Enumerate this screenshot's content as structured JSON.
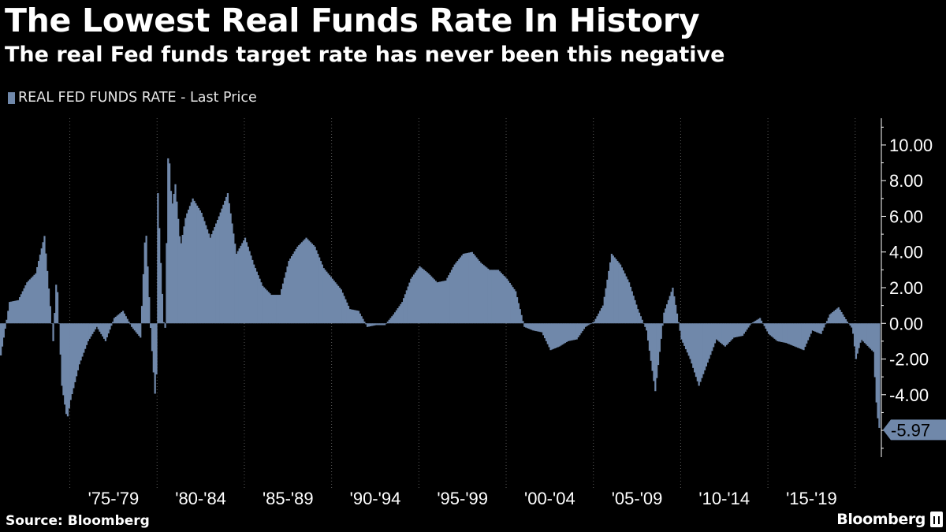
{
  "title": "The Lowest Real Funds Rate In History",
  "subtitle": "The real Fed funds target rate has never been this negative",
  "legend": {
    "label": "REAL FED FUNDS RATE - Last Price"
  },
  "last_value_label": "-5.97",
  "source": "Source: Bloomberg",
  "brand": "Bloomberg",
  "colors": {
    "background": "#000000",
    "bar": "#7088AA",
    "text": "#FFFFFF",
    "grid": "#5a5a5a"
  },
  "chart_data": {
    "type": "bar",
    "title": "The Lowest Real Funds Rate In History",
    "subtitle": "The real Fed funds target rate has never been this negative",
    "series": [
      {
        "name": "REAL FED FUNDS RATE - Last Price",
        "x": [
          1971.0,
          1971.5,
          1972.0,
          1972.5,
          1973.0,
          1973.5,
          1974.0,
          1974.2,
          1974.5,
          1974.8,
          1975.0,
          1975.5,
          1976.0,
          1976.5,
          1977.0,
          1977.5,
          1978.0,
          1978.5,
          1979.0,
          1979.3,
          1979.6,
          1979.9,
          1980.0,
          1980.2,
          1980.4,
          1980.6,
          1980.8,
          1981.0,
          1981.3,
          1981.6,
          1982.0,
          1982.5,
          1983.0,
          1983.5,
          1984.0,
          1984.5,
          1985.0,
          1985.5,
          1986.0,
          1986.5,
          1987.0,
          1987.5,
          1988.0,
          1988.5,
          1989.0,
          1989.5,
          1990.0,
          1990.5,
          1991.0,
          1991.5,
          1992.0,
          1992.5,
          1993.0,
          1993.5,
          1994.0,
          1994.5,
          1995.0,
          1995.5,
          1996.0,
          1996.5,
          1997.0,
          1997.5,
          1998.0,
          1998.5,
          1999.0,
          1999.5,
          2000.0,
          2000.5,
          2001.0,
          2001.5,
          2002.0,
          2002.5,
          2003.0,
          2003.5,
          2004.0,
          2004.5,
          2005.0,
          2005.5,
          2006.0,
          2006.5,
          2007.0,
          2007.5,
          2008.0,
          2008.5,
          2009.0,
          2009.5,
          2010.0,
          2010.5,
          2011.0,
          2011.5,
          2012.0,
          2012.5,
          2013.0,
          2013.5,
          2014.0,
          2014.5,
          2015.0,
          2015.5,
          2016.0,
          2016.5,
          2017.0,
          2017.5,
          2018.0,
          2018.5,
          2019.0,
          2019.5,
          2019.8,
          2020.0,
          2020.3,
          2020.6,
          2021.0,
          2021.2,
          2021.35
        ],
        "values": [
          -1.8,
          1.2,
          1.3,
          2.3,
          2.8,
          4.9,
          -1.0,
          2.8,
          -3.5,
          -5.4,
          -4.3,
          -2.3,
          -1.0,
          -0.2,
          -1.0,
          0.3,
          0.7,
          -0.2,
          -0.8,
          5.6,
          -0.6,
          -4.9,
          7.3,
          2.6,
          -1.2,
          10.2,
          6.5,
          7.8,
          4.3,
          6.0,
          7.0,
          6.2,
          4.8,
          6.0,
          7.3,
          3.9,
          4.8,
          3.3,
          2.1,
          1.6,
          1.6,
          3.5,
          4.3,
          4.8,
          4.3,
          3.1,
          2.5,
          1.9,
          0.8,
          0.7,
          -0.2,
          -0.1,
          -0.1,
          0.5,
          1.2,
          2.5,
          3.2,
          2.8,
          2.3,
          2.4,
          3.3,
          3.9,
          4.0,
          3.4,
          3.0,
          3.0,
          2.5,
          1.8,
          -0.2,
          -0.4,
          -0.5,
          -1.5,
          -1.3,
          -1.0,
          -0.9,
          -0.2,
          0.1,
          1.0,
          3.9,
          3.3,
          2.3,
          0.8,
          -0.4,
          -3.8,
          0.6,
          2.0,
          -0.9,
          -2.0,
          -3.5,
          -2.2,
          -0.9,
          -1.3,
          -0.8,
          -0.7,
          0.0,
          0.3,
          -0.6,
          -1.0,
          -1.1,
          -1.3,
          -1.5,
          -0.4,
          -0.6,
          0.5,
          0.9,
          0.1,
          -0.3,
          -2.0,
          -0.9,
          -1.2,
          -1.6,
          -5.0,
          -5.97
        ]
      }
    ],
    "x_tick_labels": [
      "'75-'79",
      "'80-'84",
      "'85-'89",
      "'90-'94",
      "'95-'99",
      "'00-'04",
      "'05-'09",
      "'10-'14",
      "'15-'19"
    ],
    "xlim": [
      1971,
      2021.5
    ],
    "y_tick_labels": [
      "10.00",
      "8.00",
      "6.00",
      "4.00",
      "2.00",
      "0.00",
      "-2.00",
      "-4.00"
    ],
    "y_ticks": [
      10,
      8,
      6,
      4,
      2,
      0,
      -2,
      -4
    ],
    "ylim": [
      -7.5,
      11.5
    ],
    "last_value": -5.97,
    "grid": "vertical dotted",
    "legend_position": "top-left",
    "y_axis_position": "right"
  }
}
